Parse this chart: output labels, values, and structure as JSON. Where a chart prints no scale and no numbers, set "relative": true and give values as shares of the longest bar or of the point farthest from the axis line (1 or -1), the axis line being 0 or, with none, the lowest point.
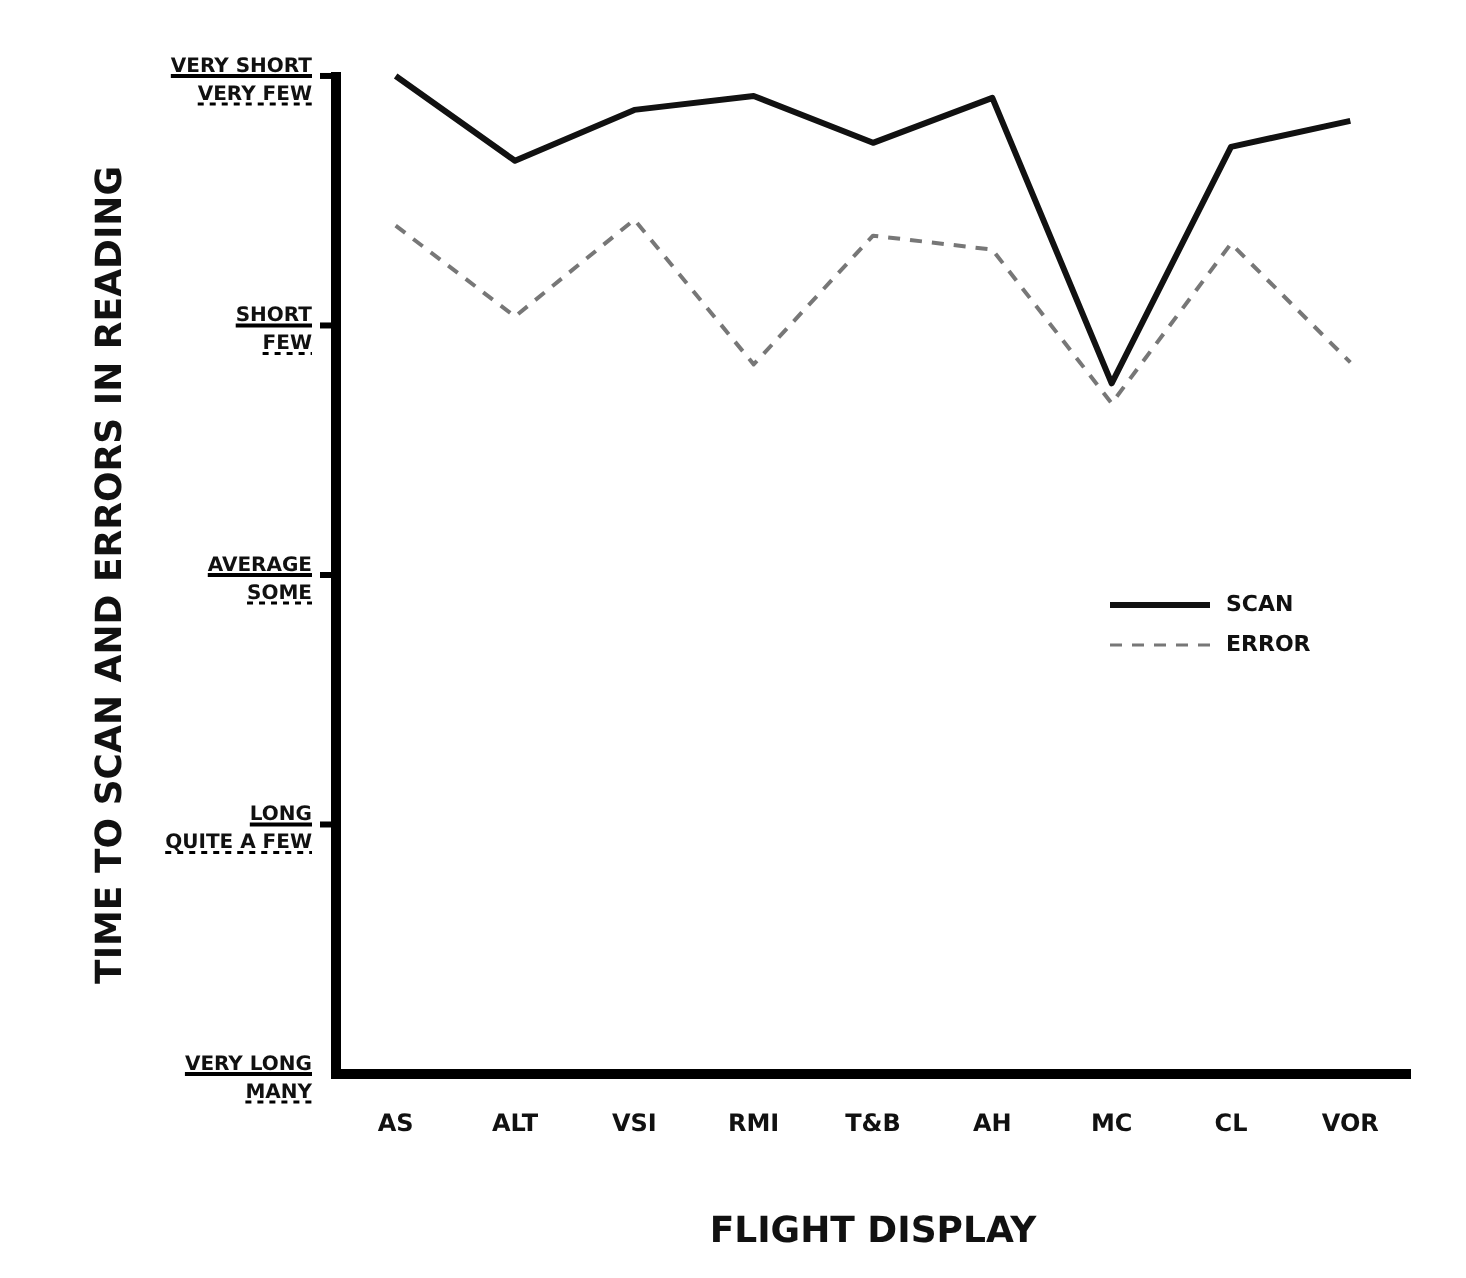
{
  "chart_data": {
    "type": "line",
    "relative": true,
    "xlabel": "FLIGHT DISPLAY",
    "categories": [
      "AS",
      "ALT",
      "VSI",
      "RMI",
      "T&B",
      "AH",
      "MC",
      "CL",
      "VOR"
    ],
    "annotations": [
      "TIME TO SCAN AND ERRORS IN READING",
      "VERY SHORT",
      "VERY FEW",
      "SHORT",
      "FEW",
      "AVERAGE",
      "SOME",
      "LONG",
      "QUITE A FEW",
      "VERY LONG",
      "MANY"
    ],
    "series": [
      {
        "name": "SCAN",
        "color": "#111111",
        "line_style": "solid",
        "values": [
          1,
          0.915,
          0.966,
          0.98,
          0.933,
          0.978,
          0.692,
          0.929,
          0.955
        ]
      },
      {
        "name": "ERROR",
        "color": "#777777",
        "line_style": "dashed",
        "values": [
          0.85,
          0.759,
          0.856,
          0.711,
          0.84,
          0.826,
          0.672,
          0.832,
          0.713
        ]
      }
    ],
    "grid": false,
    "legend": "right",
    "marker": "none"
  }
}
